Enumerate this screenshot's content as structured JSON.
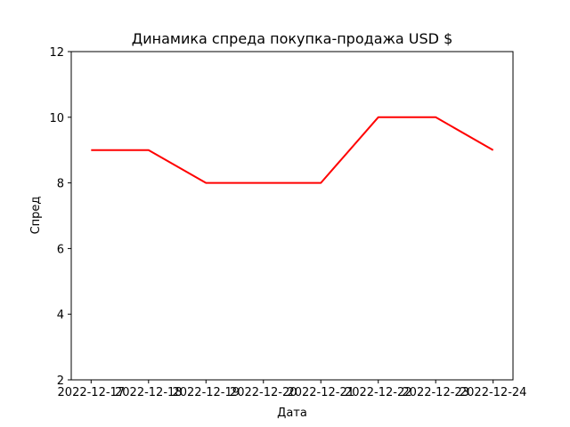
{
  "chart_data": {
    "type": "line",
    "title": "Динамика спреда покупка-продажа USD $",
    "xlabel": "Дата",
    "ylabel": "Спред",
    "categories": [
      "2022-12-17",
      "2022-12-18",
      "2022-12-19",
      "2022-12-20",
      "2022-12-21",
      "2022-12-22",
      "2022-12-23",
      "2022-12-24"
    ],
    "series": [
      {
        "values": [
          9,
          9,
          8,
          8,
          8,
          10,
          10,
          9
        ],
        "color": "#ff0000"
      }
    ],
    "ylim": [
      2,
      12
    ],
    "yticks": [
      2,
      4,
      6,
      8,
      10,
      12
    ],
    "grid": false,
    "legend": "none"
  }
}
